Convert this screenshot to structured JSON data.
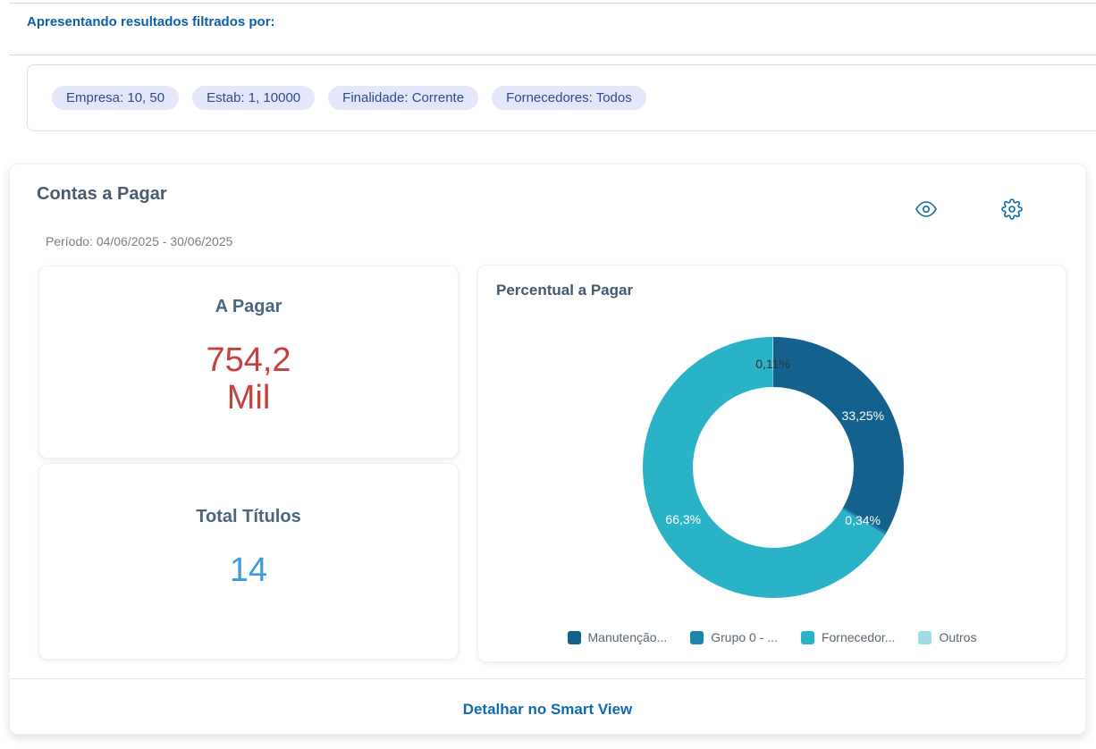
{
  "page": {
    "filter_header": "Apresentando resultados filtrados por:",
    "chips": [
      "Empresa: 10, 50",
      "Estab: 1, 10000",
      "Finalidade: Corrente",
      "Fornecedores: Todos"
    ],
    "chip_colors": {
      "background": "#e4e7f9",
      "text": "#2d4a93"
    }
  },
  "card": {
    "title": "Contas a Pagar",
    "period": "Período: 04/06/2025 - 30/06/2025",
    "icons": {
      "view": "eye-icon",
      "settings": "gear-icon"
    },
    "kpis": [
      {
        "title": "A Pagar",
        "value": "754,2\nMil",
        "value_color": "#c5413e"
      },
      {
        "title": "Total Títulos",
        "value": "14",
        "value_color": "#3f9bdf"
      }
    ],
    "footer_link": "Detalhar no Smart View",
    "link_color": "#0d6bb0"
  },
  "chart_data": {
    "type": "pie",
    "title": "Percentual a Pagar",
    "donut": true,
    "inner_radius_ratio": 0.62,
    "legend_position": "bottom",
    "slices": [
      {
        "name": "Manutenção...",
        "value": 33.25,
        "label": "33,25%",
        "color": "#15618d",
        "label_color": "#ffffff"
      },
      {
        "name": "Grupo 0 - ...",
        "value": 0.34,
        "label": "0,34%",
        "color": "#1d84ab",
        "label_color": "#ffffff"
      },
      {
        "name": "Fornecedor...",
        "value": 66.3,
        "label": "66,3%",
        "color": "#2ab2c6",
        "label_color": "#ffffff"
      },
      {
        "name": "Outros",
        "value": 0.11,
        "label": "0,11%",
        "color": "#9edce5",
        "label_color": "#333333"
      }
    ]
  }
}
